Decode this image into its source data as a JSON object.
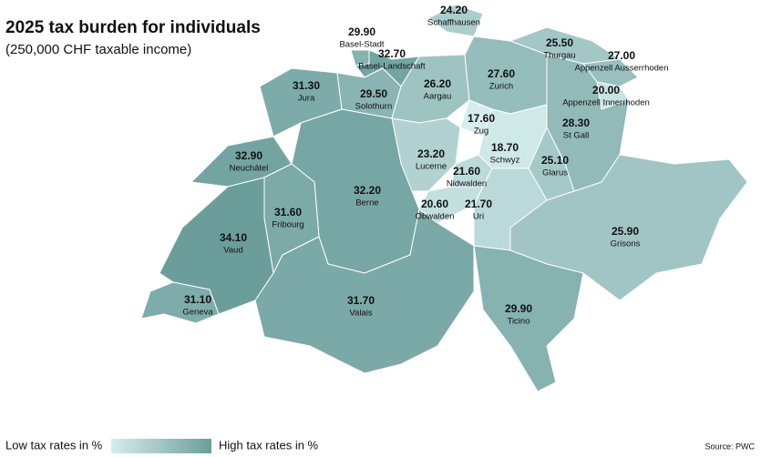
{
  "title": "2025 tax burden for individuals",
  "subtitle": "(250,000 CHF taxable income)",
  "color_scale": [
    "#d6eded",
    "#6b9e9b"
  ],
  "cantons": [
    {
      "name": "Schaffhausen",
      "value": 24.2,
      "value_label": "24.20"
    },
    {
      "name": "Basel-Stadt",
      "value": 29.9,
      "value_label": "29.90"
    },
    {
      "name": "Basel-Landschaft",
      "value": 32.7,
      "value_label": "32.70"
    },
    {
      "name": "Thurgau",
      "value": 25.5,
      "value_label": "25.50"
    },
    {
      "name": "Appenzell Ausserrhoden",
      "value": 27.0,
      "value_label": "27.00"
    },
    {
      "name": "Jura",
      "value": 31.3,
      "value_label": "31.30"
    },
    {
      "name": "Solothurn",
      "value": 29.5,
      "value_label": "29.50"
    },
    {
      "name": "Aargau",
      "value": 26.2,
      "value_label": "26.20"
    },
    {
      "name": "Zurich",
      "value": 27.6,
      "value_label": "27.60"
    },
    {
      "name": "Appenzell Innerrhoden",
      "value": 20.0,
      "value_label": "20.00"
    },
    {
      "name": "Zug",
      "value": 17.6,
      "value_label": "17.60"
    },
    {
      "name": "St Gall",
      "value": 28.3,
      "value_label": "28.30"
    },
    {
      "name": "Schwyz",
      "value": 18.7,
      "value_label": "18.70"
    },
    {
      "name": "Lucerne",
      "value": 23.2,
      "value_label": "23.20"
    },
    {
      "name": "Neuchâtel",
      "value": 32.9,
      "value_label": "32.90"
    },
    {
      "name": "Nidwalden",
      "value": 21.6,
      "value_label": "21.60"
    },
    {
      "name": "Glarus",
      "value": 25.1,
      "value_label": "25.10"
    },
    {
      "name": "Berne",
      "value": 32.2,
      "value_label": "32.20"
    },
    {
      "name": "Fribourg",
      "value": 31.6,
      "value_label": "31.60"
    },
    {
      "name": "Obwalden",
      "value": 20.6,
      "value_label": "20.60"
    },
    {
      "name": "Uri",
      "value": 21.7,
      "value_label": "21.70"
    },
    {
      "name": "Vaud",
      "value": 34.1,
      "value_label": "34.10"
    },
    {
      "name": "Grisons",
      "value": 25.9,
      "value_label": "25.90"
    },
    {
      "name": "Geneva",
      "value": 31.1,
      "value_label": "31.10"
    },
    {
      "name": "Valais",
      "value": 31.7,
      "value_label": "31.70"
    },
    {
      "name": "Ticino",
      "value": 29.9,
      "value_label": "29.90"
    }
  ],
  "legend": {
    "low": "Low tax rates in %",
    "high": "High tax rates in %"
  },
  "source": "Source: PWC"
}
